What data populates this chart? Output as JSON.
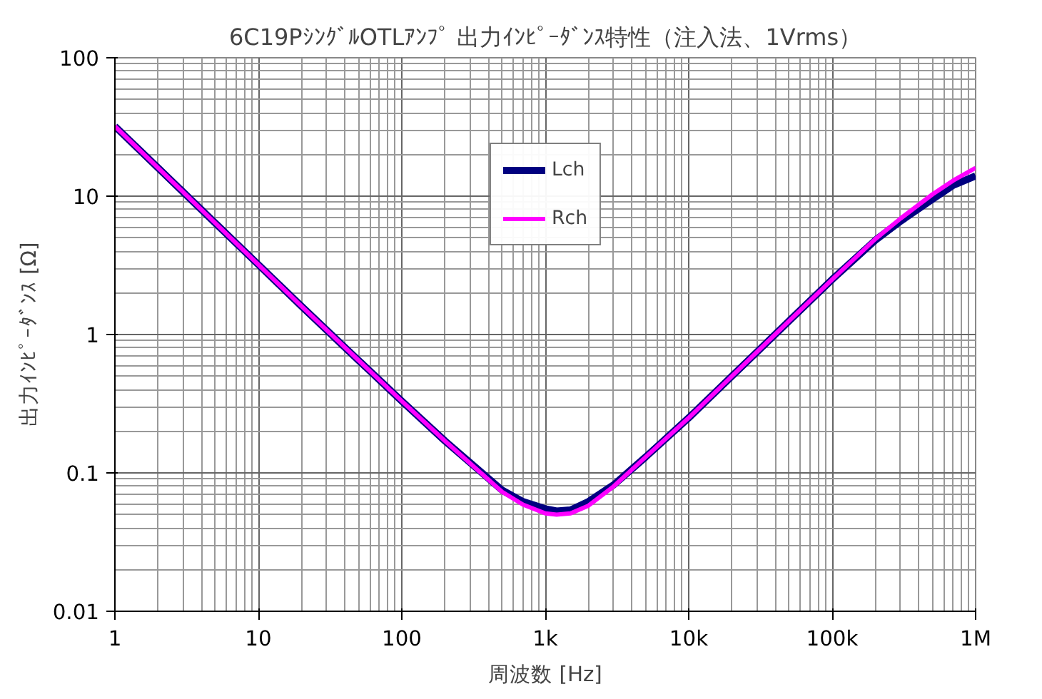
{
  "chart_data": {
    "type": "line",
    "title": "6C19PｼﾝｸﾞﾙOTLｱﾝﾌﾟ 出力ｲﾝﾋﾟｰﾀﾞﾝｽ特性（注入法、1Vrms）",
    "xlabel": "周波数 [Hz]",
    "ylabel": "出力ｲﾝﾋﾟｰﾀﾞﾝｽ [Ω]",
    "log": "xy",
    "grid": true,
    "legend": "top",
    "marker": "none",
    "line_style": "solid",
    "x": [
      1,
      2,
      5,
      10,
      20,
      50,
      100,
      200,
      500,
      700,
      1000,
      1200,
      1500,
      2000,
      3000,
      5000,
      10000,
      20000,
      50000,
      100000,
      200000,
      300000,
      500000,
      700000,
      1000000
    ],
    "series": [
      {
        "name": "Lch",
        "color": "#000080",
        "values": [
          32,
          16,
          6.4,
          3.2,
          1.6,
          0.65,
          0.33,
          0.17,
          0.075,
          0.062,
          0.055,
          0.053,
          0.054,
          0.062,
          0.082,
          0.13,
          0.25,
          0.5,
          1.25,
          2.5,
          4.8,
          6.6,
          9.5,
          12,
          14
        ]
      },
      {
        "name": "Rch",
        "color": "#ff00ff",
        "values": [
          32,
          16,
          6.4,
          3.2,
          1.6,
          0.65,
          0.33,
          0.17,
          0.073,
          0.059,
          0.051,
          0.05,
          0.051,
          0.058,
          0.08,
          0.13,
          0.25,
          0.5,
          1.25,
          2.5,
          4.9,
          6.9,
          10.3,
          13,
          16
        ]
      }
    ],
    "xlim": [
      1,
      1000000
    ],
    "ylim": [
      0.01,
      100
    ],
    "xticks": [
      1,
      10,
      100,
      {
        "value": 1000,
        "label": "1k"
      },
      {
        "value": 10000,
        "label": "10k"
      },
      {
        "value": 100000,
        "label": "100k"
      },
      {
        "value": 1000000,
        "label": "1M"
      }
    ],
    "yticks": [
      0.01,
      0.1,
      1,
      10,
      100
    ]
  }
}
